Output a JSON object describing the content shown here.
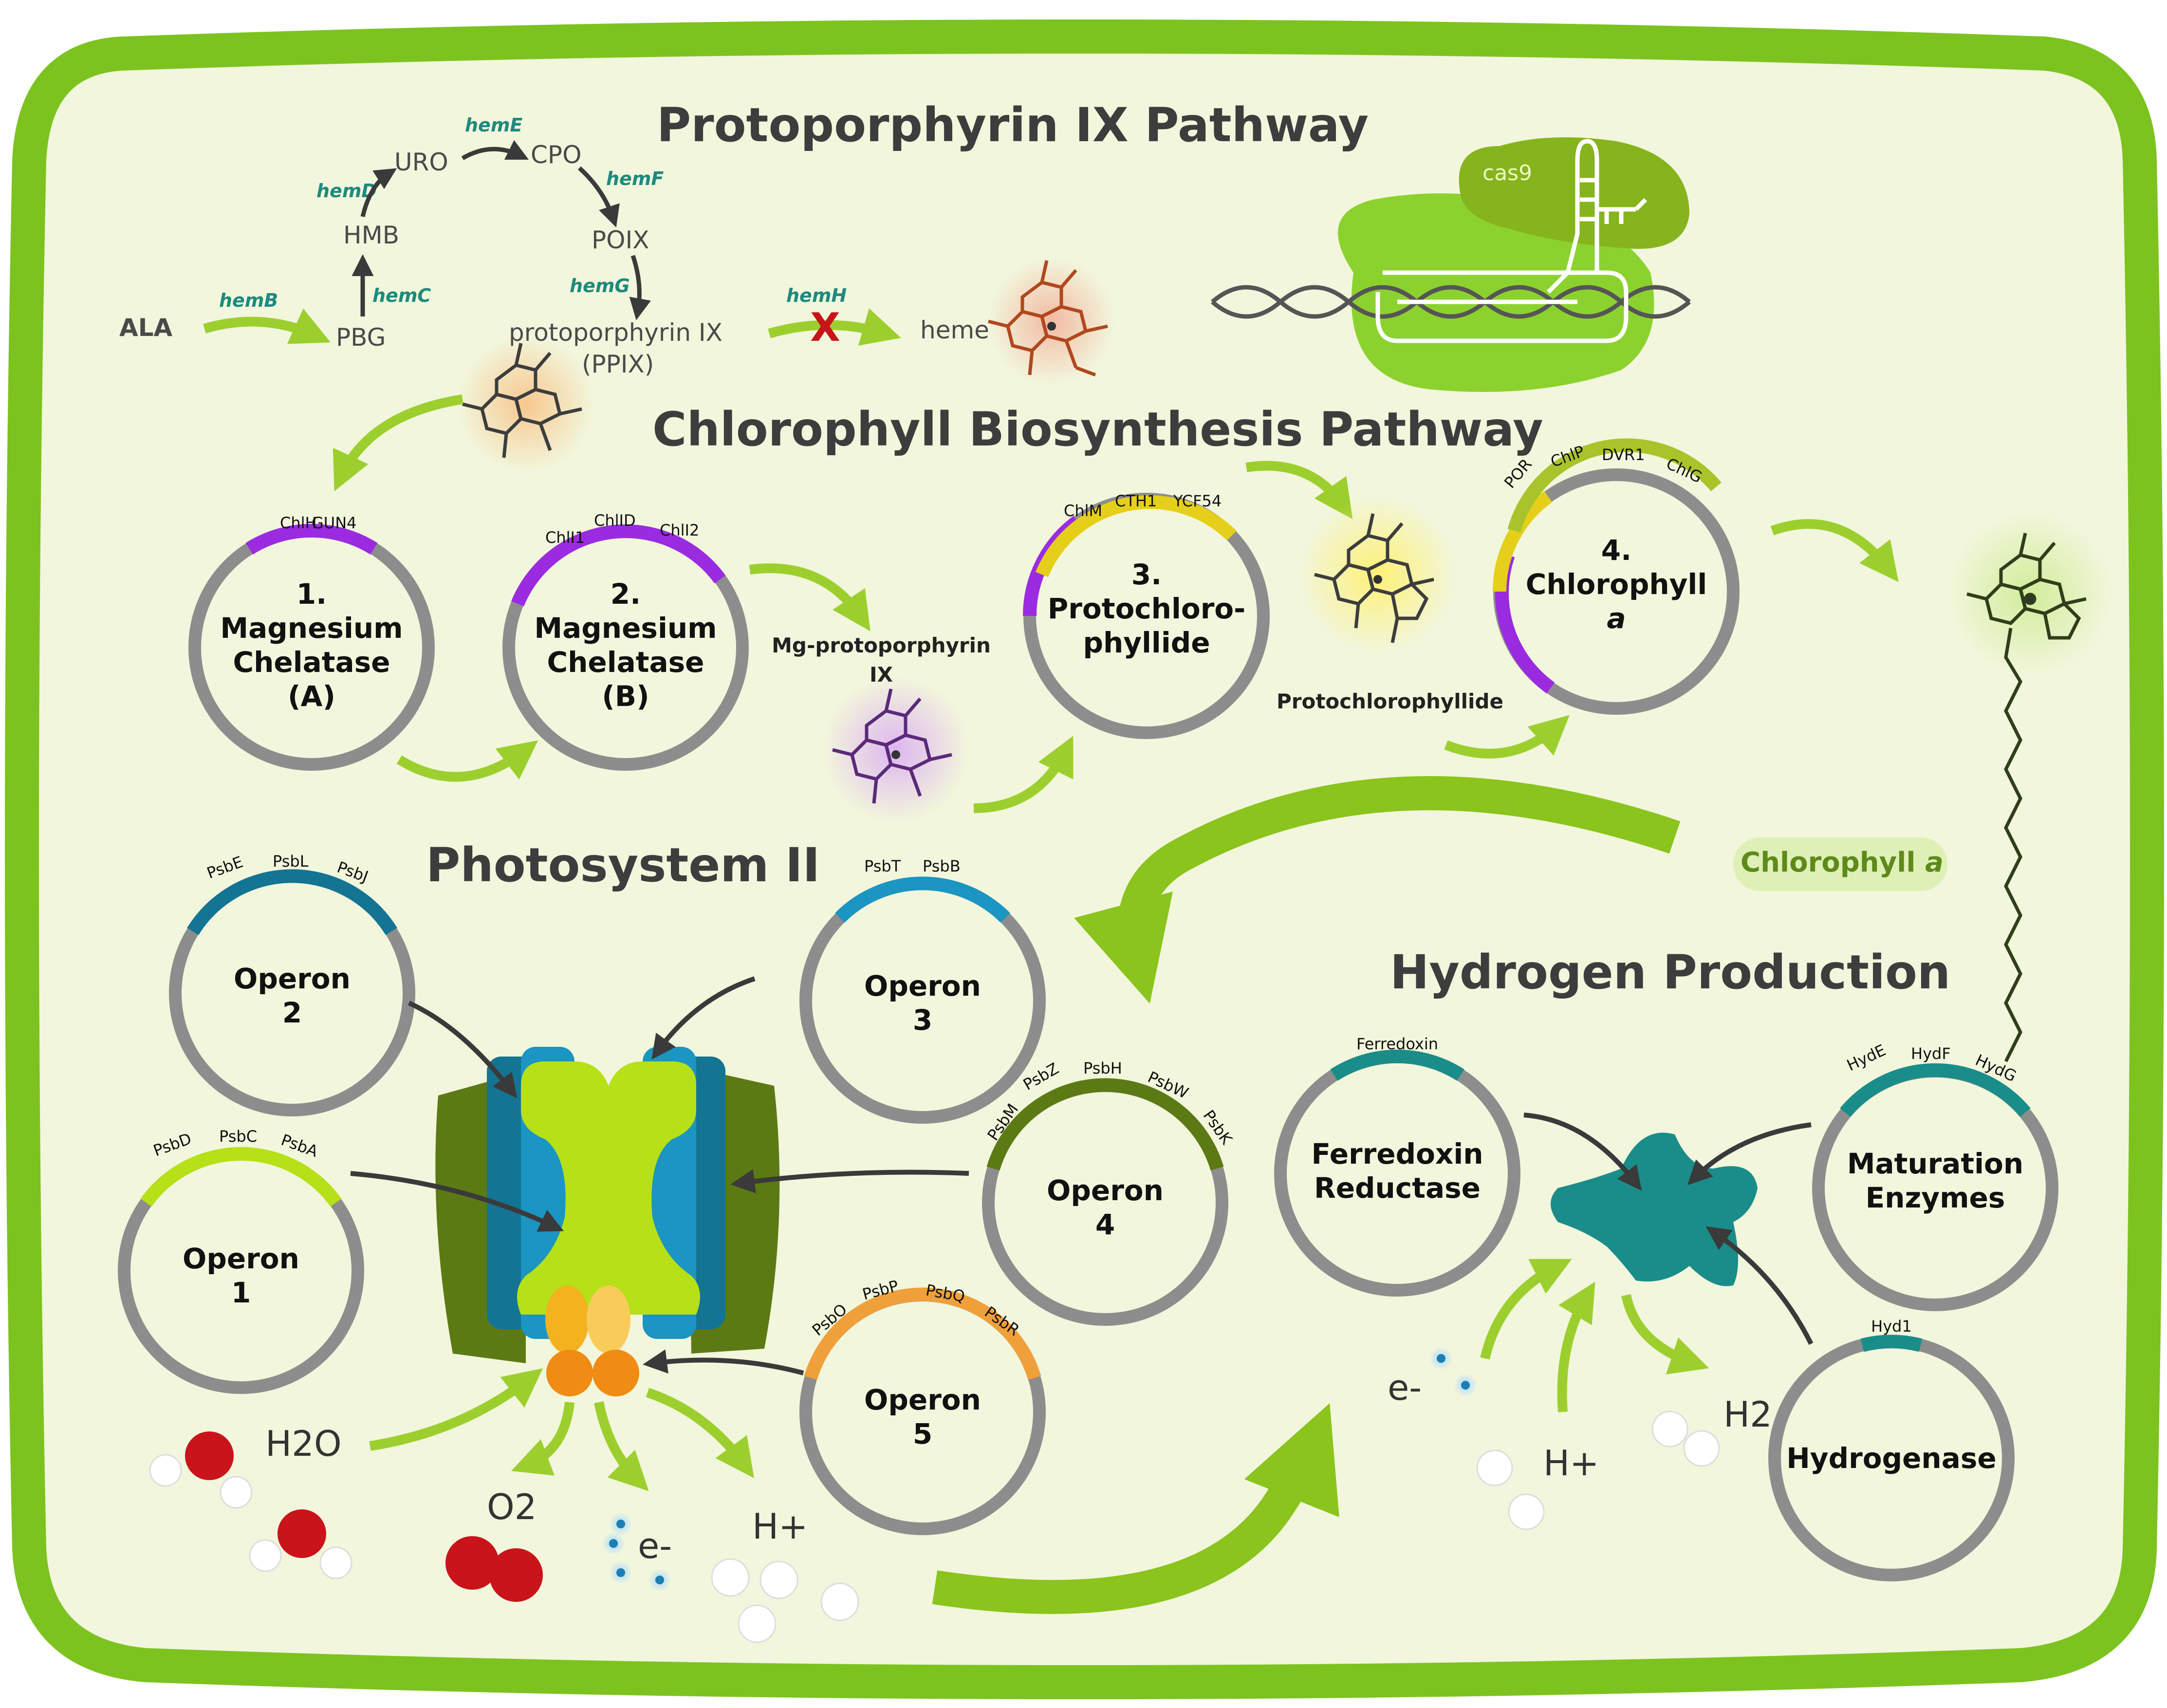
{
  "colors": {
    "cell_border": "#7cc320",
    "cell_fill": "#f2f6dc",
    "plasmid_ring": "#8d8d8d",
    "arrow_green": "#9ccf2e",
    "arrow_dark": "#3a3a3a",
    "gene_text": "#1e8a7e",
    "purple": "#9b2be0",
    "yellow": "#e6cf1a",
    "olive": "#a8c42a",
    "psii_blue": "#1b95c2",
    "psii_teal": "#137493",
    "psii_olive": "#5c7a14",
    "psii_lime": "#b6e017",
    "teal_protein": "#1a8d8a",
    "orange": "#f0a03a",
    "oxygen_red": "#c8141a"
  },
  "titles": {
    "ppix": "Protoporphyrin IX Pathway",
    "chl": "Chlorophyll Biosynthesis Pathway",
    "psii": "Photosystem II",
    "hydrogen": "Hydrogen Production"
  },
  "ppix_pathway": {
    "nodes": {
      "ala": "ALA",
      "pbg": "PBG",
      "hmb": "HMB",
      "uro": "URO",
      "cpo": "CPO",
      "poix": "POIX",
      "ppix": "protoporphyrin IX",
      "ppix_abbr": "(PPIX)",
      "heme": "heme"
    },
    "genes": [
      "hemB",
      "hemC",
      "hemD",
      "hemE",
      "hemF",
      "hemG",
      "hemH"
    ],
    "blocked_mark": "X"
  },
  "cas9": {
    "label": "cas9"
  },
  "chl_plasmids": [
    {
      "line1": "1.",
      "line2": "Magnesium",
      "line3": "Chelatase",
      "line4": "(A)",
      "segments": [
        "ChlH",
        "GUN4"
      ]
    },
    {
      "line1": "2.",
      "line2": "Magnesium",
      "line3": "Chelatase",
      "line4": "(B)",
      "segments": [
        "ChlI1",
        "ChlID",
        "ChlI2"
      ]
    },
    {
      "line1": "3.",
      "line2": "Protochloro-",
      "line3": "phyllide",
      "segments": [
        "ChlM",
        "CTH1",
        "YCF54"
      ]
    },
    {
      "line1": "4.",
      "line2": "Chlorophyll",
      "line3": "a",
      "segments": [
        "POR",
        "ChlP",
        "DVR1",
        "ChlG"
      ]
    }
  ],
  "molecules": {
    "mg_ppix_1": "Mg-protoporphyrin",
    "mg_ppix_2": "IX",
    "protochlorophyllide": "Protochlorophyllide",
    "chlorophyll_a_prefix": "Chlorophyll",
    "chlorophyll_a_suffix": "a"
  },
  "psii_operons": [
    {
      "line1": "Operon",
      "line2": "2",
      "segments": [
        "PsbE",
        "PsbL",
        "PsbJ"
      ]
    },
    {
      "line1": "Operon",
      "line2": "3",
      "segments": [
        "PsbT",
        "PsbB"
      ]
    },
    {
      "line1": "Operon",
      "line2": "1",
      "segments": [
        "PsbD",
        "PsbC",
        "PsbA"
      ]
    },
    {
      "line1": "Operon",
      "line2": "4",
      "segments": [
        "PsbM",
        "PsbZ",
        "PsbH",
        "PsbW",
        "PsbK"
      ]
    },
    {
      "line1": "Operon",
      "line2": "5",
      "segments": [
        "PsbO",
        "PsbP",
        "PsbQ",
        "PsbR"
      ]
    }
  ],
  "psii_chem": {
    "h2o": "H2O",
    "o2": "O2",
    "e": "e-",
    "h": "H+"
  },
  "h2_plasmids": [
    {
      "line1": "Ferredoxin",
      "line2": "Reductase",
      "segments": [
        "Ferredoxin"
      ]
    },
    {
      "line1": "Maturation",
      "line2": "Enzymes",
      "segments": [
        "HydE",
        "HydF",
        "HydG"
      ]
    },
    {
      "line1": "Hydrogenase",
      "line2": "",
      "segments": [
        "Hyd1"
      ]
    }
  ],
  "h2_chem": {
    "e": "e-",
    "h": "H+",
    "h2": "H2"
  }
}
